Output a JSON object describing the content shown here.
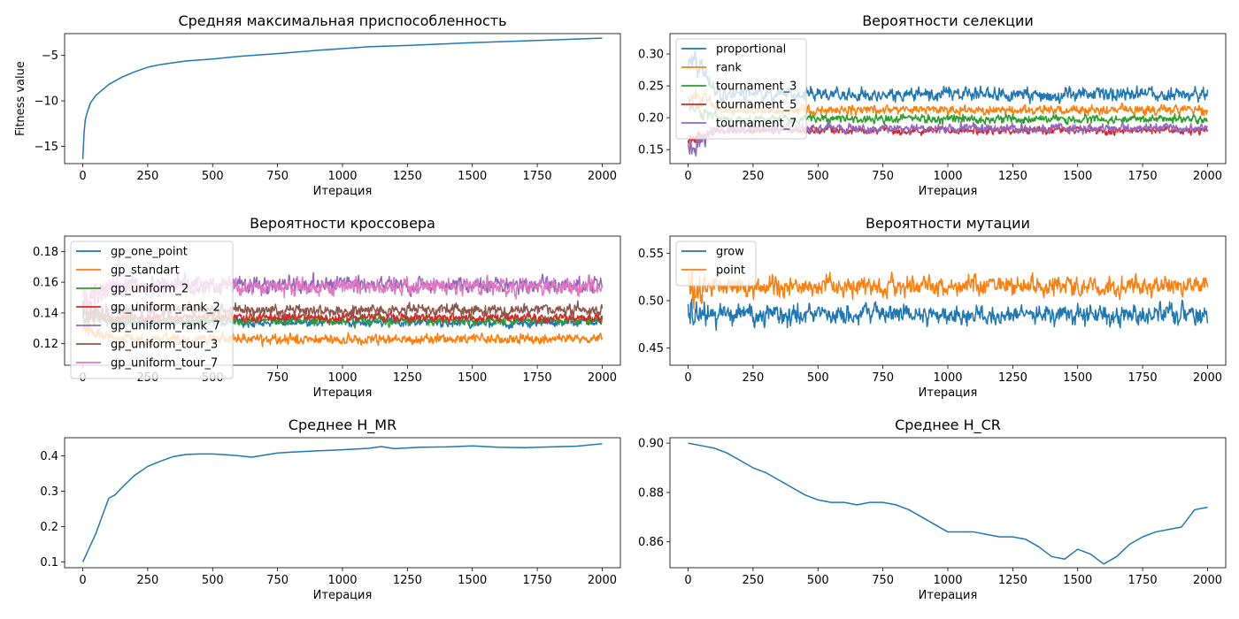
{
  "figure": {
    "palette": [
      "#1f77b4",
      "#ff7f0e",
      "#2ca02c",
      "#d62728",
      "#9467bd",
      "#8c564b",
      "#e377c2"
    ]
  },
  "chart_data": [
    {
      "id": "fitness",
      "type": "line",
      "title": "Средняя максимальная приспособленность",
      "xlabel": "Итерация",
      "ylabel": "Fitness value",
      "xlim": [
        -70,
        2070
      ],
      "ylim": [
        -16.9,
        -2.6
      ],
      "xticks": [
        0,
        250,
        500,
        750,
        1000,
        1250,
        1500,
        1750,
        2000
      ],
      "yticks": [
        -15,
        -10,
        -5
      ],
      "ytick_labels": [
        "−15",
        "−10",
        "−5"
      ],
      "grid": false,
      "legend": "none",
      "series": [
        {
          "color": "#1f77b4",
          "x": [
            0,
            5,
            10,
            20,
            30,
            50,
            75,
            100,
            150,
            200,
            250,
            300,
            350,
            400,
            500,
            600,
            750,
            900,
            1000,
            1100,
            1250,
            1500,
            1750,
            2000
          ],
          "y": [
            -16.4,
            -13.5,
            -12.0,
            -11.0,
            -10.2,
            -9.4,
            -8.8,
            -8.2,
            -7.4,
            -6.8,
            -6.3,
            -6.0,
            -5.8,
            -5.6,
            -5.4,
            -5.1,
            -4.8,
            -4.45,
            -4.25,
            -4.05,
            -3.9,
            -3.6,
            -3.35,
            -3.1
          ]
        }
      ]
    },
    {
      "id": "selection",
      "type": "line",
      "title": "Вероятности селекции",
      "xlabel": "Итерация",
      "ylabel": "",
      "xlim": [
        -70,
        2070
      ],
      "ylim": [
        0.128,
        0.332
      ],
      "xticks": [
        0,
        250,
        500,
        750,
        1000,
        1250,
        1500,
        1750,
        2000
      ],
      "yticks": [
        0.15,
        0.2,
        0.25,
        0.3
      ],
      "ytick_labels": [
        "0.15",
        "0.20",
        "0.25",
        "0.30"
      ],
      "grid": false,
      "legend": "upper-left",
      "noise": true,
      "series": [
        {
          "name": "proportional",
          "color": "#1f77b4",
          "mean": 0.237,
          "amp": 0.026,
          "start": 0.3
        },
        {
          "name": "rank",
          "color": "#ff7f0e",
          "mean": 0.212,
          "amp": 0.018,
          "start": 0.24
        },
        {
          "name": "tournament_3",
          "color": "#2ca02c",
          "mean": 0.198,
          "amp": 0.016,
          "start": 0.22
        },
        {
          "name": "tournament_5",
          "color": "#d62728",
          "mean": 0.18,
          "amp": 0.014,
          "start": 0.17
        },
        {
          "name": "tournament_7",
          "color": "#9467bd",
          "mean": 0.183,
          "amp": 0.018,
          "start": 0.15
        }
      ]
    },
    {
      "id": "crossover",
      "type": "line",
      "title": "Вероятности кроссовера",
      "xlabel": "Итерация",
      "ylabel": "",
      "xlim": [
        -70,
        2070
      ],
      "ylim": [
        0.106,
        0.19
      ],
      "xticks": [
        0,
        250,
        500,
        750,
        1000,
        1250,
        1500,
        1750,
        2000
      ],
      "yticks": [
        0.12,
        0.14,
        0.16,
        0.18
      ],
      "ytick_labels": [
        "0.12",
        "0.14",
        "0.16",
        "0.18"
      ],
      "grid": false,
      "legend": "upper-left",
      "noise": true,
      "series": [
        {
          "name": "gp_one_point",
          "color": "#1f77b4",
          "mean": 0.134,
          "amp": 0.007,
          "start": 0.14
        },
        {
          "name": "gp_standart",
          "color": "#ff7f0e",
          "mean": 0.123,
          "amp": 0.008,
          "start": 0.13
        },
        {
          "name": "gp_uniform_2",
          "color": "#2ca02c",
          "mean": 0.135,
          "amp": 0.007,
          "start": 0.14
        },
        {
          "name": "gp_uniform_rank_2",
          "color": "#d62728",
          "mean": 0.137,
          "amp": 0.007,
          "start": 0.14
        },
        {
          "name": "gp_uniform_rank_7",
          "color": "#9467bd",
          "mean": 0.158,
          "amp": 0.013,
          "start": 0.15
        },
        {
          "name": "gp_uniform_tour_3",
          "color": "#8c564b",
          "mean": 0.142,
          "amp": 0.009,
          "start": 0.14
        },
        {
          "name": "gp_uniform_tour_7",
          "color": "#e377c2",
          "mean": 0.157,
          "amp": 0.013,
          "start": 0.15
        }
      ]
    },
    {
      "id": "mutation",
      "type": "line",
      "title": "Вероятности мутации",
      "xlabel": "Итерация",
      "ylabel": "",
      "xlim": [
        -70,
        2070
      ],
      "ylim": [
        0.432,
        0.568
      ],
      "xticks": [
        0,
        250,
        500,
        750,
        1000,
        1250,
        1500,
        1750,
        2000
      ],
      "yticks": [
        0.45,
        0.5,
        0.55
      ],
      "ytick_labels": [
        "0.45",
        "0.50",
        "0.55"
      ],
      "grid": false,
      "legend": "upper-left",
      "noise": true,
      "series": [
        {
          "name": "grow",
          "color": "#1f77b4",
          "mean": 0.485,
          "amp": 0.025,
          "start": 0.49
        },
        {
          "name": "point",
          "color": "#ff7f0e",
          "mean": 0.515,
          "amp": 0.025,
          "start": 0.51
        }
      ]
    },
    {
      "id": "hmr",
      "type": "line",
      "title": "Среднее H_MR",
      "xlabel": "Итерация",
      "ylabel": "",
      "xlim": [
        -70,
        2070
      ],
      "ylim": [
        0.084,
        0.451
      ],
      "xticks": [
        0,
        250,
        500,
        750,
        1000,
        1250,
        1500,
        1750,
        2000
      ],
      "yticks": [
        0.1,
        0.2,
        0.3,
        0.4
      ],
      "ytick_labels": [
        "0.1",
        "0.2",
        "0.3",
        "0.4"
      ],
      "grid": false,
      "legend": "none",
      "series": [
        {
          "color": "#1f77b4",
          "x": [
            0,
            25,
            50,
            75,
            100,
            125,
            150,
            200,
            250,
            300,
            350,
            400,
            450,
            500,
            550,
            600,
            650,
            700,
            750,
            800,
            900,
            1000,
            1100,
            1150,
            1200,
            1300,
            1400,
            1500,
            1600,
            1700,
            1800,
            1900,
            2000
          ],
          "y": [
            0.1,
            0.14,
            0.18,
            0.23,
            0.28,
            0.29,
            0.31,
            0.345,
            0.37,
            0.385,
            0.398,
            0.404,
            0.405,
            0.405,
            0.403,
            0.4,
            0.396,
            0.402,
            0.408,
            0.41,
            0.414,
            0.417,
            0.421,
            0.426,
            0.42,
            0.424,
            0.425,
            0.428,
            0.424,
            0.423,
            0.425,
            0.427,
            0.434
          ]
        }
      ]
    },
    {
      "id": "hcr",
      "type": "line",
      "title": "Среднее H_CR",
      "xlabel": "Итерация",
      "ylabel": "",
      "xlim": [
        -70,
        2070
      ],
      "ylim": [
        0.8495,
        0.9022
      ],
      "xticks": [
        0,
        250,
        500,
        750,
        1000,
        1250,
        1500,
        1750,
        2000
      ],
      "yticks": [
        0.86,
        0.88,
        0.9
      ],
      "ytick_labels": [
        "0.86",
        "0.88",
        "0.90"
      ],
      "grid": false,
      "legend": "none",
      "series": [
        {
          "color": "#1f77b4",
          "x": [
            0,
            50,
            100,
            150,
            200,
            250,
            300,
            350,
            400,
            450,
            500,
            550,
            600,
            650,
            700,
            750,
            800,
            850,
            900,
            950,
            1000,
            1050,
            1100,
            1150,
            1200,
            1250,
            1300,
            1350,
            1400,
            1450,
            1500,
            1550,
            1600,
            1650,
            1700,
            1750,
            1800,
            1850,
            1900,
            1950,
            2000
          ],
          "y": [
            0.9,
            0.899,
            0.898,
            0.896,
            0.893,
            0.89,
            0.888,
            0.885,
            0.882,
            0.879,
            0.877,
            0.876,
            0.876,
            0.875,
            0.876,
            0.876,
            0.875,
            0.873,
            0.87,
            0.867,
            0.864,
            0.864,
            0.864,
            0.863,
            0.862,
            0.862,
            0.861,
            0.858,
            0.854,
            0.853,
            0.857,
            0.855,
            0.851,
            0.854,
            0.859,
            0.862,
            0.864,
            0.865,
            0.866,
            0.873,
            0.874
          ]
        }
      ]
    }
  ]
}
